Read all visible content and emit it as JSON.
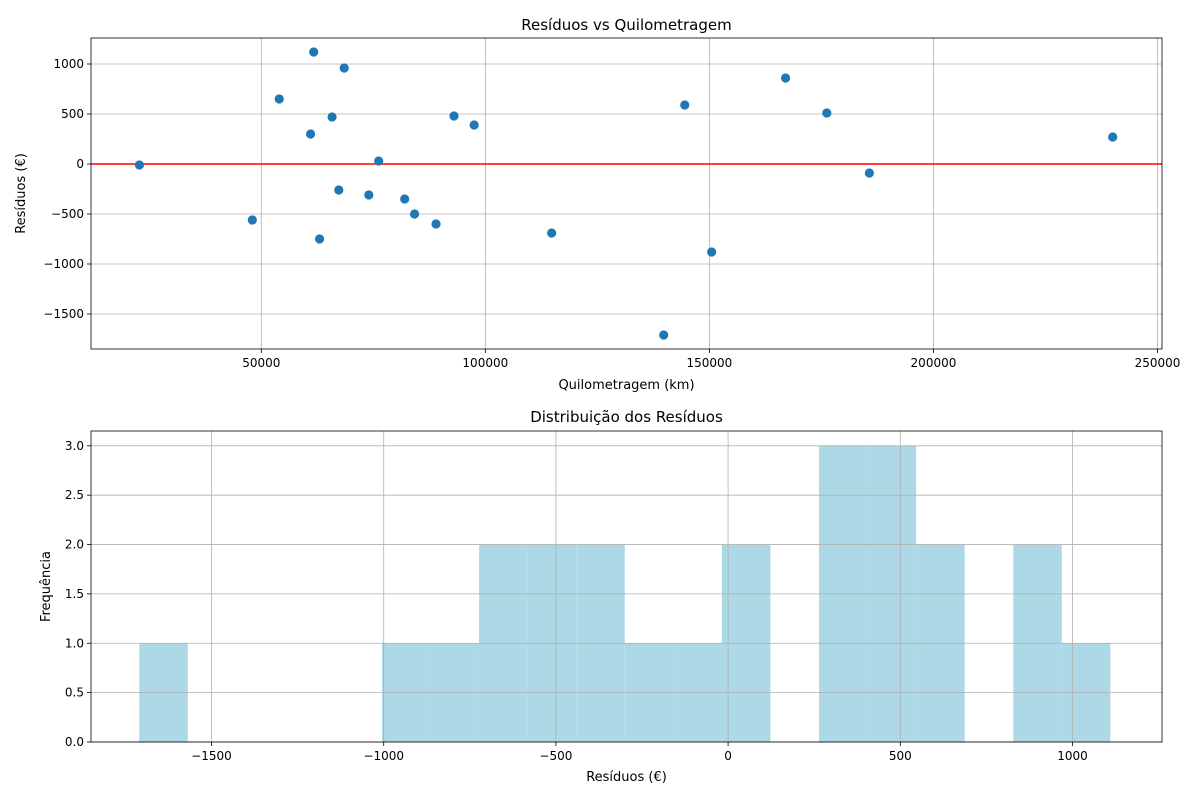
{
  "chart_data": [
    {
      "type": "scatter",
      "title": "Resíduos vs Quilometragem",
      "xlabel": "Quilometragem (km)",
      "ylabel": "Resíduos (€)",
      "xlim": [
        12000,
        251000
      ],
      "ylim": [
        -1850,
        1260
      ],
      "xticks": [
        50000,
        100000,
        150000,
        200000,
        250000
      ],
      "xtick_labels": [
        "50000",
        "100000",
        "150000",
        "200000",
        "250000"
      ],
      "yticks": [
        -1500,
        -1000,
        -500,
        0,
        500,
        1000
      ],
      "ytick_labels": [
        "−1500",
        "−1000",
        "−500",
        "0",
        "500",
        "1000"
      ],
      "grid": true,
      "point_color": "#1f77b4",
      "reference_line": {
        "y": 0,
        "color": "#ff0000"
      },
      "points": [
        {
          "x": 22800,
          "y": -10
        },
        {
          "x": 48000,
          "y": -560
        },
        {
          "x": 54000,
          "y": 650
        },
        {
          "x": 61000,
          "y": 300
        },
        {
          "x": 61700,
          "y": 1120
        },
        {
          "x": 63000,
          "y": -750
        },
        {
          "x": 65800,
          "y": 470
        },
        {
          "x": 67300,
          "y": -260
        },
        {
          "x": 68500,
          "y": 960
        },
        {
          "x": 74000,
          "y": -310
        },
        {
          "x": 76200,
          "y": 30
        },
        {
          "x": 82000,
          "y": -350
        },
        {
          "x": 84200,
          "y": -500
        },
        {
          "x": 89000,
          "y": -600
        },
        {
          "x": 93000,
          "y": 480
        },
        {
          "x": 97500,
          "y": 390
        },
        {
          "x": 114800,
          "y": -690
        },
        {
          "x": 139800,
          "y": -1710
        },
        {
          "x": 144500,
          "y": 590
        },
        {
          "x": 150500,
          "y": -880
        },
        {
          "x": 167000,
          "y": 860
        },
        {
          "x": 176200,
          "y": 510
        },
        {
          "x": 185700,
          "y": -90
        },
        {
          "x": 240000,
          "y": 270
        }
      ]
    },
    {
      "type": "bar",
      "subtype": "histogram",
      "title": "Distribuição dos Resíduos",
      "xlabel": "Resíduos (€)",
      "ylabel": "Frequência",
      "xlim": [
        -1850,
        1260
      ],
      "ylim": [
        0,
        3.15
      ],
      "xticks": [
        -1500,
        -1000,
        -500,
        0,
        500,
        1000
      ],
      "xtick_labels": [
        "−1500",
        "−1000",
        "−500",
        "0",
        "500",
        "1000"
      ],
      "yticks": [
        0,
        0.5,
        1.0,
        1.5,
        2.0,
        2.5,
        3.0
      ],
      "ytick_labels": [
        "0.0",
        "0.5",
        "1.0",
        "1.5",
        "2.0",
        "2.5",
        "3.0"
      ],
      "grid": true,
      "bar_color": "#add8e6",
      "bins": [
        {
          "x0": -1710,
          "x1": -1569,
          "count": 1
        },
        {
          "x0": -1569,
          "x1": -1428,
          "count": 0
        },
        {
          "x0": -1428,
          "x1": -1287,
          "count": 0
        },
        {
          "x0": -1287,
          "x1": -1146,
          "count": 0
        },
        {
          "x0": -1146,
          "x1": -1005,
          "count": 0
        },
        {
          "x0": -1005,
          "x1": -864,
          "count": 1
        },
        {
          "x0": -864,
          "x1": -723,
          "count": 1
        },
        {
          "x0": -723,
          "x1": -582,
          "count": 2
        },
        {
          "x0": -582,
          "x1": -441,
          "count": 2
        },
        {
          "x0": -441,
          "x1": -300,
          "count": 2
        },
        {
          "x0": -300,
          "x1": -159,
          "count": 1
        },
        {
          "x0": -159,
          "x1": -18,
          "count": 1
        },
        {
          "x0": -18,
          "x1": 123,
          "count": 2
        },
        {
          "x0": 123,
          "x1": 264,
          "count": 0
        },
        {
          "x0": 264,
          "x1": 405,
          "count": 3
        },
        {
          "x0": 405,
          "x1": 546,
          "count": 3
        },
        {
          "x0": 546,
          "x1": 687,
          "count": 2
        },
        {
          "x0": 687,
          "x1": 828,
          "count": 0
        },
        {
          "x0": 828,
          "x1": 969,
          "count": 2
        },
        {
          "x0": 969,
          "x1": 1110,
          "count": 1
        }
      ]
    }
  ]
}
